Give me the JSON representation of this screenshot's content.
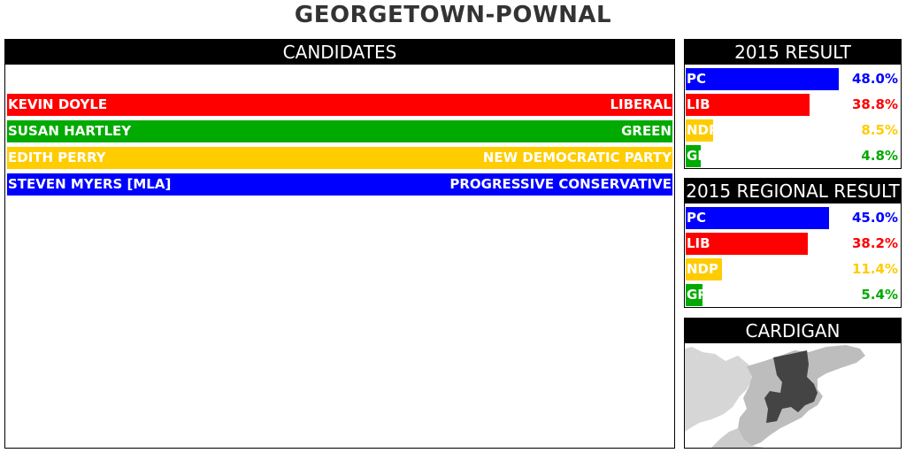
{
  "title": "GEORGETOWN-POWNAL",
  "candidates_panel": {
    "heading": "CANDIDATES",
    "candidates": [
      {
        "name": "KEVIN DOYLE",
        "party": "LIBERAL",
        "color": "#ff0000"
      },
      {
        "name": "SUSAN HARTLEY",
        "party": "GREEN",
        "color": "#00aa00"
      },
      {
        "name": "EDITH PERRY",
        "party": "NEW DEMOCRATIC PARTY",
        "color": "#ffcc00"
      },
      {
        "name": "STEVEN MYERS [MLA]",
        "party": "PROGRESSIVE CONSERVATIVE",
        "color": "#0000ff"
      }
    ]
  },
  "result_2015": {
    "heading": "2015 RESULT",
    "rows": [
      {
        "party": "PC",
        "pct_text": "48.0%",
        "color": "#0000ff"
      },
      {
        "party": "LIB",
        "pct_text": "38.8%",
        "color": "#ff0000"
      },
      {
        "party": "NDP",
        "pct_text": "8.5%",
        "color": "#ffcc00"
      },
      {
        "party": "GRN",
        "pct_text": "4.8%",
        "color": "#00aa00"
      }
    ]
  },
  "regional_2015": {
    "heading": "2015 REGIONAL RESULT",
    "rows": [
      {
        "party": "PC",
        "pct_text": "45.0%",
        "color": "#0000ff"
      },
      {
        "party": "LIB",
        "pct_text": "38.2%",
        "color": "#ff0000"
      },
      {
        "party": "NDP",
        "pct_text": "11.4%",
        "color": "#ffcc00"
      },
      {
        "party": "GRN",
        "pct_text": "5.4%",
        "color": "#00aa00"
      }
    ]
  },
  "region_map": {
    "heading": "CARDIGAN",
    "colors": {
      "water": "#ffffff",
      "land": "#d6d6d6",
      "region": "#bdbdbd",
      "district": "#444444"
    }
  },
  "chart_data": [
    {
      "type": "bar",
      "title": "2015 RESULT",
      "categories": [
        "PC",
        "LIB",
        "NDP",
        "GRN"
      ],
      "values": [
        48.0,
        38.8,
        8.5,
        4.8
      ],
      "xlim": [
        0,
        50
      ]
    },
    {
      "type": "bar",
      "title": "2015 REGIONAL RESULT",
      "categories": [
        "PC",
        "LIB",
        "NDP",
        "GRN"
      ],
      "values": [
        45.0,
        38.2,
        11.4,
        5.4
      ],
      "xlim": [
        0,
        50
      ]
    }
  ]
}
